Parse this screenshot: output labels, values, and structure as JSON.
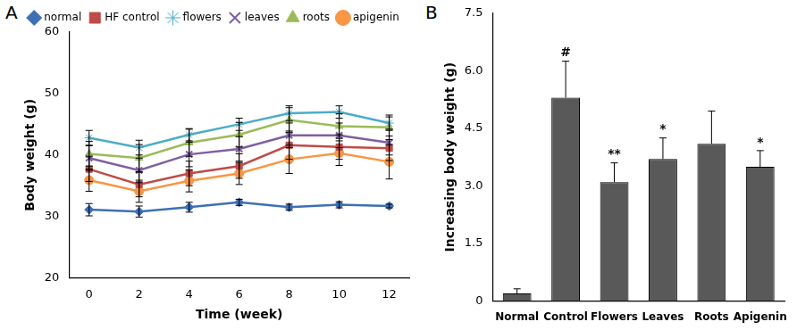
{
  "chart_data": [
    {
      "type": "line",
      "panel_label": "A",
      "x_label": "Time (week)",
      "y_label": "Body weight (g)",
      "x": [
        0,
        2,
        4,
        6,
        8,
        10,
        12
      ],
      "xlim": [
        -0.8,
        12.8
      ],
      "xticks": [
        0,
        2,
        4,
        6,
        8,
        10,
        12
      ],
      "ylim": [
        20,
        60
      ],
      "yticks": [
        20,
        30,
        40,
        50,
        60
      ],
      "grid": false,
      "legend": "top",
      "series": [
        {
          "name": "normal",
          "color": "#3e6fb5",
          "marker": "diamond",
          "values": [
            31.1,
            30.8,
            31.5,
            32.3,
            31.5,
            31.9,
            31.7
          ],
          "errors": [
            1.0,
            0.9,
            0.8,
            0.5,
            0.5,
            0.5,
            0.3
          ]
        },
        {
          "name": "HF control",
          "color": "#be4b48",
          "marker": "square",
          "values": [
            37.7,
            35.2,
            37.0,
            38.2,
            41.6,
            41.3,
            41.1
          ],
          "errors": [
            2.0,
            2.0,
            2.0,
            2.0,
            2.3,
            2.0,
            2.0
          ]
        },
        {
          "name": "flowers",
          "color": "#4bacc6",
          "marker": "star",
          "values": [
            42.8,
            41.2,
            43.3,
            45.0,
            46.8,
            47.0,
            45.2
          ],
          "errors": [
            1.2,
            1.2,
            1.0,
            1.0,
            1.2,
            1.0,
            1.0
          ]
        },
        {
          "name": "leaves",
          "color": "#7f5fa0",
          "marker": "x",
          "values": [
            39.5,
            37.5,
            40.1,
            41.0,
            43.2,
            43.2,
            42.0
          ],
          "errors": [
            2.0,
            2.0,
            2.0,
            2.0,
            2.0,
            2.0,
            2.0
          ]
        },
        {
          "name": "roots",
          "color": "#9bbb59",
          "marker": "triangle",
          "values": [
            40.2,
            39.5,
            42.0,
            43.3,
            45.7,
            44.7,
            44.5
          ],
          "errors": [
            2.0,
            2.2,
            2.2,
            2.0,
            2.0,
            2.0,
            2.0
          ]
        },
        {
          "name": "apigenin",
          "color": "#f79646",
          "marker": "circle",
          "values": [
            35.9,
            34.1,
            35.8,
            37.0,
            39.3,
            40.3,
            38.9
          ],
          "errors": [
            1.8,
            1.8,
            1.8,
            1.8,
            2.3,
            2.0,
            2.8
          ]
        }
      ]
    },
    {
      "type": "bar",
      "panel_label": "B",
      "y_label": "Increasing body weight (g)",
      "categories": [
        "Normal",
        "Control",
        "Flowers",
        "Leaves",
        "Roots",
        "Apigenin"
      ],
      "values": [
        0.2,
        5.3,
        3.1,
        3.7,
        4.1,
        3.5
      ],
      "errors": [
        0.12,
        0.95,
        0.5,
        0.55,
        0.85,
        0.42
      ],
      "significance": [
        null,
        "#",
        "**",
        "*",
        null,
        "*"
      ],
      "color": "#595959",
      "ylim": [
        0,
        7.5
      ],
      "yticks": [
        0,
        1.5,
        {
          "value": 3,
          "label": "3.0"
        },
        4.5,
        {
          "value": 6,
          "label": "6.0"
        },
        7.5
      ],
      "grid": false
    }
  ]
}
